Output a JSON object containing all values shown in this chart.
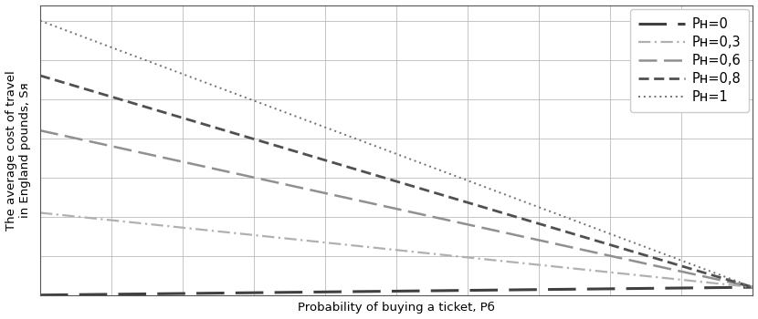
{
  "xlabel": "Probability of buying a ticket, Рб",
  "ylabel": "The average cost of travel\nin England pounds, Sя",
  "ticket_price": 1,
  "penalty": 35,
  "x_min": 0,
  "x_max": 1,
  "y_min": 0,
  "y_max": 37,
  "background_color": "#ffffff",
  "grid_color": "#bbbbbb",
  "axis_label_fontsize": 9.5,
  "legend_fontsize": 10.5,
  "n_points": 500,
  "line_configs": [
    {
      "ph": 0.0,
      "color": "#404040",
      "lw": 2.2,
      "dash": [
        10,
        4
      ],
      "label": "Рн=0"
    },
    {
      "ph": 0.3,
      "color": "#b0b0b0",
      "lw": 1.6,
      "dash": [
        6,
        2,
        1,
        2
      ],
      "label": "Рн=0,3"
    },
    {
      "ph": 0.6,
      "color": "#909090",
      "lw": 1.8,
      "dash": [
        8,
        3
      ],
      "label": "Рн=0,6"
    },
    {
      "ph": 0.8,
      "color": "#505050",
      "lw": 2.0,
      "dash": [
        4,
        2
      ],
      "label": "Рн=0,8"
    },
    {
      "ph": 1.0,
      "color": "#707070",
      "lw": 1.4,
      "dash": [
        1,
        2
      ],
      "label": "Рн=1"
    }
  ]
}
